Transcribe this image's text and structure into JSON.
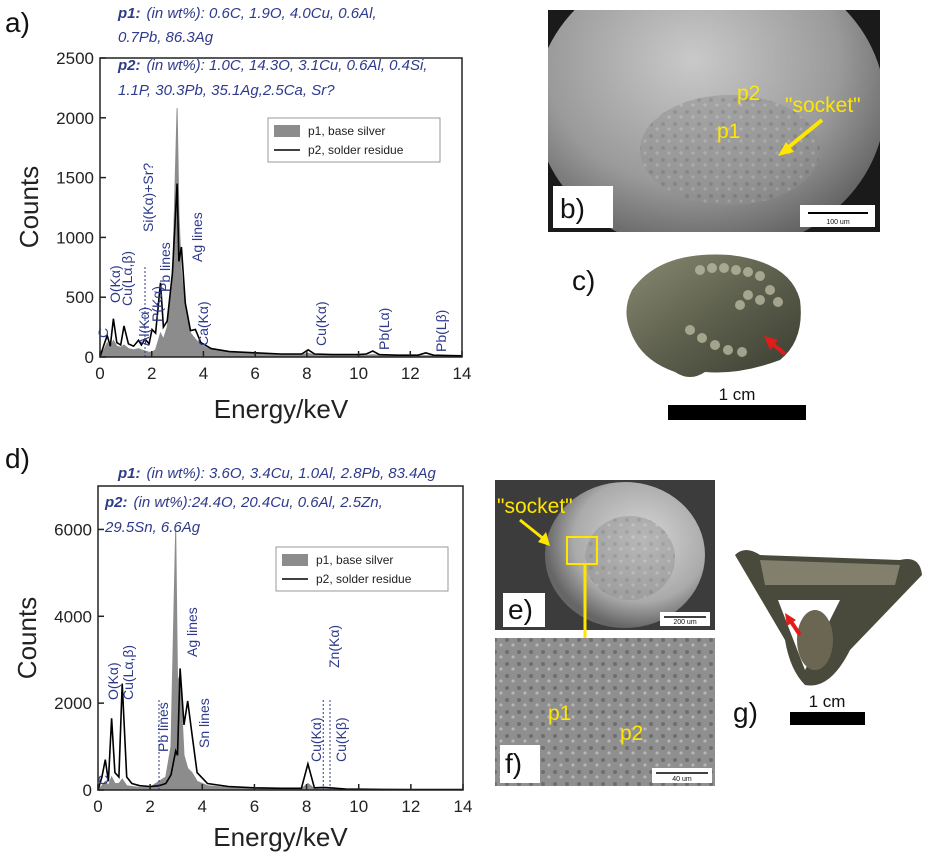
{
  "chart_data": [
    {
      "type": "line",
      "panel_label": "a)",
      "xlabel": "Energy/keV",
      "ylabel": "Counts",
      "xlim": [
        0,
        14
      ],
      "xticks": [
        0,
        2,
        4,
        6,
        8,
        10,
        12,
        14
      ],
      "ylim": [
        0,
        2500
      ],
      "yticks": [
        0,
        500,
        1000,
        1500,
        2000,
        2500
      ],
      "x": [
        0,
        0.15,
        0.28,
        0.4,
        0.52,
        0.65,
        0.8,
        0.93,
        1.1,
        1.3,
        1.49,
        1.6,
        1.74,
        1.9,
        2.01,
        2.15,
        2.34,
        2.45,
        2.6,
        2.8,
        2.98,
        3.05,
        3.15,
        3.3,
        3.5,
        3.69,
        3.9,
        4.3,
        5,
        6,
        7,
        7.8,
        8.05,
        8.3,
        9,
        10,
        10.3,
        10.55,
        10.8,
        11.5,
        12.3,
        12.6,
        12.9,
        13.5,
        14
      ],
      "series": [
        {
          "name": "p1, base silver",
          "color": "#8c8c8c",
          "filled": true,
          "values": [
            0,
            60,
            120,
            80,
            140,
            90,
            80,
            100,
            70,
            60,
            70,
            60,
            50,
            40,
            40,
            60,
            200,
            150,
            250,
            600,
            2080,
            1200,
            700,
            400,
            200,
            150,
            100,
            60,
            40,
            30,
            20,
            20,
            30,
            20,
            15,
            15,
            15,
            20,
            15,
            12,
            10,
            12,
            10,
            10,
            10
          ]
        },
        {
          "name": "p2, solder residue",
          "color": "#000000",
          "filled": false,
          "values": [
            0,
            100,
            180,
            90,
            320,
            120,
            100,
            260,
            110,
            90,
            140,
            100,
            150,
            110,
            230,
            200,
            620,
            250,
            300,
            700,
            1450,
            800,
            920,
            450,
            220,
            230,
            120,
            70,
            45,
            35,
            25,
            25,
            60,
            25,
            20,
            20,
            25,
            50,
            20,
            15,
            15,
            35,
            15,
            12,
            10
          ]
        }
      ],
      "annotations": [
        "C",
        "O(Kα)",
        "Cu(Lα,β)",
        "Al(Kα)",
        "Si(Kα)+Sr?",
        "P(Kα)",
        "Pb lines",
        "Ag lines",
        "Ca(Kα)",
        "Cu(Kα)",
        "Pb(Lα)",
        "Pb(Lβ)"
      ],
      "compositions": [
        {
          "label": "p1:",
          "lines": [
            "(in wt%): 0.6C, 1.9O, 4.0Cu, 0.6Al,",
            "0.7Pb, 86.3Ag"
          ]
        },
        {
          "label": "p2:",
          "lines": [
            "(in wt%): 1.0C, 14.3O, 3.1Cu, 0.6Al, 0.4Si,",
            "1.1P, 30.3Pb, 35.1Ag,2.5Ca, Sr?"
          ]
        }
      ]
    },
    {
      "type": "line",
      "panel_label": "d)",
      "xlabel": "Energy/keV",
      "ylabel": "Counts",
      "xlim": [
        0,
        14
      ],
      "xticks": [
        0,
        2,
        4,
        6,
        8,
        10,
        12,
        14
      ],
      "ylim": [
        0,
        7000
      ],
      "yticks": [
        0,
        2000,
        4000,
        6000
      ],
      "x": [
        0,
        0.15,
        0.28,
        0.4,
        0.52,
        0.65,
        0.8,
        0.93,
        1.1,
        1.3,
        1.6,
        2.0,
        2.34,
        2.6,
        2.8,
        2.98,
        3.05,
        3.15,
        3.3,
        3.44,
        3.6,
        3.8,
        4.2,
        5,
        6,
        7,
        7.8,
        8.05,
        8.3,
        8.64,
        8.9,
        9.5,
        10.5,
        12,
        14
      ],
      "series": [
        {
          "name": "p1, base silver",
          "color": "#8c8c8c",
          "filled": true,
          "values": [
            0,
            100,
            200,
            100,
            300,
            150,
            150,
            250,
            100,
            80,
            60,
            60,
            200,
            300,
            1000,
            6000,
            2500,
            2650,
            800,
            500,
            400,
            200,
            100,
            60,
            40,
            30,
            30,
            150,
            30,
            20,
            20,
            15,
            10,
            10,
            10
          ]
        },
        {
          "name": "p2, solder residue",
          "color": "#000000",
          "filled": false,
          "values": [
            0,
            300,
            700,
            200,
            1650,
            400,
            300,
            2450,
            300,
            150,
            100,
            80,
            100,
            150,
            350,
            900,
            800,
            2800,
            1500,
            2050,
            1300,
            400,
            150,
            80,
            50,
            40,
            40,
            600,
            50,
            60,
            50,
            20,
            15,
            10,
            10
          ]
        }
      ],
      "annotations": [
        "C",
        "O(Kα)",
        "Cu(Lα,β)",
        "Pb lines",
        "Ag lines",
        "Sn lines",
        "Cu(Kα)",
        "Zn(Kα)",
        "Cu(Kβ)"
      ],
      "compositions": [
        {
          "label": "p1:",
          "lines": [
            "(in wt%): 3.6O, 3.4Cu, 1.0Al, 2.8Pb, 83.4Ag"
          ]
        },
        {
          "label": "p2:",
          "lines": [
            "(in wt%):24.4O, 20.4Cu, 0.6Al, 2.5Zn,",
            "29.5Sn, 6.6Ag"
          ]
        }
      ]
    }
  ],
  "images": [
    {
      "panel_label": "b)",
      "labels": [
        "p2",
        "p1",
        "\"socket\""
      ],
      "scale": "100 um"
    },
    {
      "panel_label": "c)",
      "scale": "1 cm"
    },
    {
      "panel_label": "e)",
      "labels": [
        "\"socket\""
      ],
      "scale": "200 um"
    },
    {
      "panel_label": "f)",
      "labels": [
        "p1",
        "p2"
      ],
      "scale": "40 um"
    },
    {
      "panel_label": "g)",
      "scale": "1 cm"
    }
  ]
}
